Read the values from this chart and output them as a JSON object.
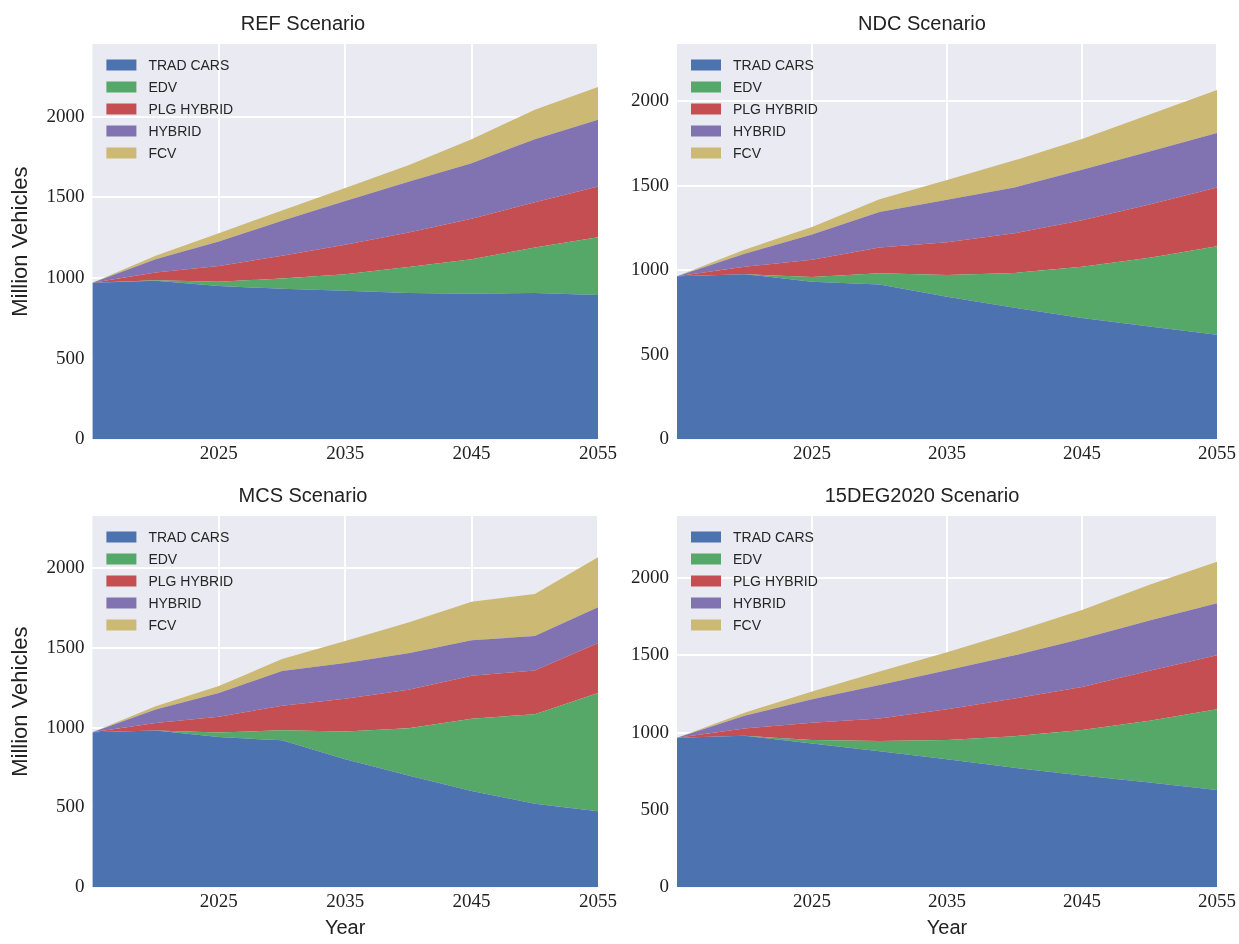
{
  "chart_data": [
    {
      "type": "area",
      "title": "REF Scenario",
      "ylabel": "Million Vehicles",
      "stacked": true,
      "legend": "top left",
      "grid": true,
      "xlim": [
        2015,
        2055
      ],
      "xticks": [
        2025,
        2035,
        2045,
        2055
      ],
      "ylim": [
        0,
        2450
      ],
      "yticks": [
        0,
        500,
        1000,
        1500,
        2000
      ],
      "x": [
        2015,
        2020,
        2025,
        2030,
        2035,
        2040,
        2045,
        2050,
        2055
      ],
      "series": [
        {
          "name": "TRAD CARS",
          "color": "#4c72b0",
          "values": [
            970,
            983,
            950,
            932,
            920,
            907,
            902,
            907,
            894
          ]
        },
        {
          "name": "EDV",
          "color": "#55a868",
          "values": [
            0,
            2,
            26,
            64,
            102,
            161,
            214,
            281,
            358
          ]
        },
        {
          "name": "PLG HYBRID",
          "color": "#c44e52",
          "values": [
            0,
            49,
            97,
            141,
            184,
            214,
            250,
            281,
            314
          ]
        },
        {
          "name": "HYBRID",
          "color": "#8172b2",
          "values": [
            0,
            82,
            153,
            217,
            270,
            314,
            345,
            391,
            414
          ]
        },
        {
          "name": "FCV",
          "color": "#ccb974",
          "values": [
            0,
            21,
            51,
            64,
            82,
            103,
            149,
            183,
            204
          ]
        }
      ]
    },
    {
      "type": "area",
      "title": "NDC Scenario",
      "stacked": true,
      "legend": "top left",
      "grid": true,
      "xlim": [
        2015,
        2055
      ],
      "xticks": [
        2025,
        2035,
        2045,
        2055
      ],
      "ylim": [
        0,
        2340
      ],
      "yticks": [
        0,
        500,
        1000,
        1500,
        2000
      ],
      "x": [
        2015,
        2020,
        2025,
        2030,
        2035,
        2040,
        2045,
        2050,
        2055
      ],
      "series": [
        {
          "name": "TRAD CARS",
          "color": "#4c72b0",
          "values": [
            965,
            977,
            933,
            916,
            844,
            778,
            718,
            667,
            618
          ]
        },
        {
          "name": "EDV",
          "color": "#55a868",
          "values": [
            0,
            0,
            27,
            66,
            128,
            206,
            303,
            407,
            524
          ]
        },
        {
          "name": "PLG HYBRID",
          "color": "#c44e52",
          "values": [
            0,
            44,
            102,
            153,
            194,
            235,
            276,
            315,
            349
          ]
        },
        {
          "name": "HYBRID",
          "color": "#8172b2",
          "values": [
            0,
            77,
            150,
            210,
            252,
            272,
            298,
            315,
            322
          ]
        },
        {
          "name": "FCV",
          "color": "#ccb974",
          "values": [
            0,
            24,
            44,
            76,
            117,
            160,
            182,
            218,
            255
          ]
        }
      ]
    },
    {
      "type": "area",
      "title": "MCS Scenario",
      "xlabel": "Year",
      "ylabel": "Million Vehicles",
      "stacked": true,
      "legend": "top left",
      "grid": true,
      "xlim": [
        2015,
        2055
      ],
      "xticks": [
        2025,
        2035,
        2045,
        2055
      ],
      "ylim": [
        0,
        2325
      ],
      "yticks": [
        0,
        500,
        1000,
        1500,
        2000
      ],
      "x": [
        2015,
        2020,
        2025,
        2030,
        2035,
        2040,
        2045,
        2050,
        2055
      ],
      "series": [
        {
          "name": "TRAD CARS",
          "color": "#4c72b0",
          "values": [
            971,
            981,
            940,
            920,
            802,
            699,
            602,
            523,
            475
          ]
        },
        {
          "name": "EDV",
          "color": "#55a868",
          "values": [
            0,
            0,
            29,
            63,
            174,
            296,
            453,
            561,
            742
          ]
        },
        {
          "name": "PLG HYBRID",
          "color": "#c44e52",
          "values": [
            0,
            48,
            98,
            154,
            205,
            241,
            270,
            273,
            313
          ]
        },
        {
          "name": "HYBRID",
          "color": "#8172b2",
          "values": [
            0,
            84,
            150,
            217,
            224,
            229,
            222,
            216,
            224
          ]
        },
        {
          "name": "FCV",
          "color": "#ccb974",
          "values": [
            0,
            20,
            43,
            75,
            137,
            193,
            241,
            263,
            313
          ]
        }
      ]
    },
    {
      "type": "area",
      "title": "15DEG2020 Scenario",
      "xlabel": "Year",
      "stacked": true,
      "legend": "top left",
      "grid": true,
      "xlim": [
        2015,
        2055
      ],
      "xticks": [
        2025,
        2035,
        2045,
        2055
      ],
      "ylim": [
        0,
        2400
      ],
      "yticks": [
        0,
        500,
        1000,
        1500,
        2000
      ],
      "x": [
        2015,
        2020,
        2025,
        2030,
        2035,
        2040,
        2045,
        2050,
        2055
      ],
      "series": [
        {
          "name": "TRAD CARS",
          "color": "#4c72b0",
          "values": [
            966,
            979,
            929,
            879,
            827,
            772,
            722,
            677,
            628
          ]
        },
        {
          "name": "EDV",
          "color": "#55a868",
          "values": [
            0,
            0,
            22,
            67,
            124,
            204,
            294,
            399,
            523
          ]
        },
        {
          "name": "PLG HYBRID",
          "color": "#c44e52",
          "values": [
            0,
            47,
            113,
            145,
            200,
            244,
            279,
            324,
            348
          ]
        },
        {
          "name": "HYBRID",
          "color": "#8172b2",
          "values": [
            0,
            82,
            151,
            217,
            251,
            279,
            311,
            324,
            337
          ]
        },
        {
          "name": "FCV",
          "color": "#ccb974",
          "values": [
            0,
            20,
            50,
            87,
            117,
            152,
            187,
            231,
            269
          ]
        }
      ]
    }
  ]
}
